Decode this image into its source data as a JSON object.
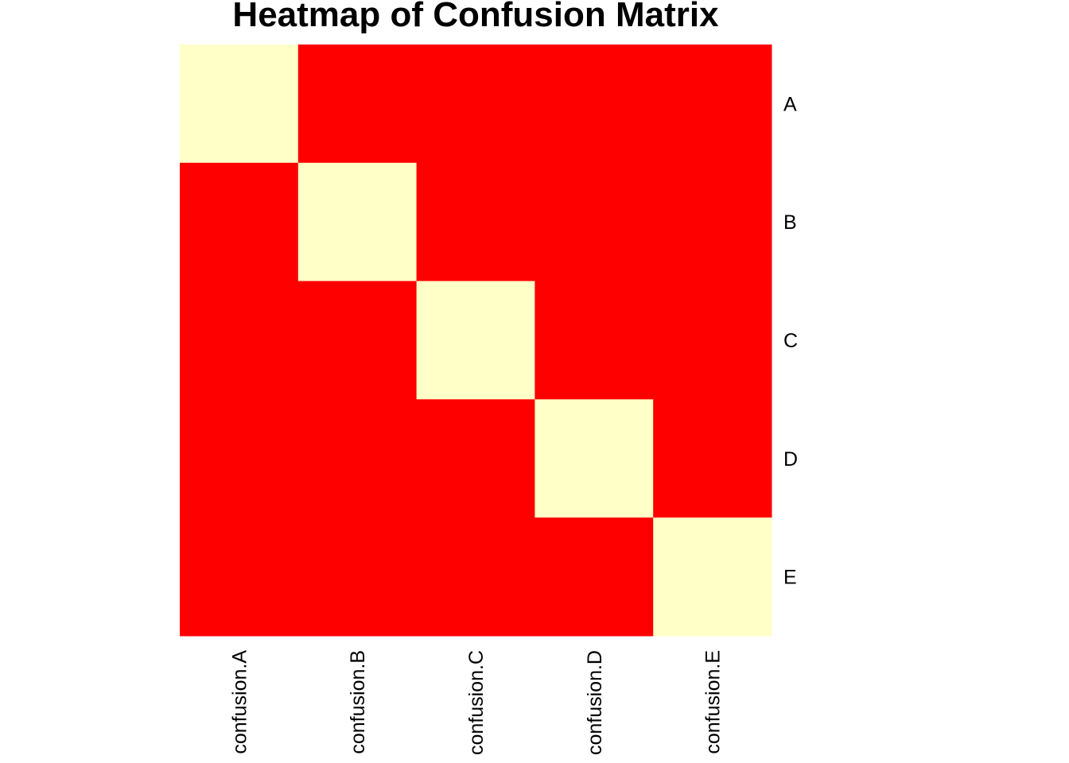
{
  "chart_data": {
    "type": "heatmap",
    "title": "Heatmap of Confusion Matrix",
    "columns": [
      "confusion.A",
      "confusion.B",
      "confusion.C",
      "confusion.D",
      "confusion.E"
    ],
    "rows": [
      "A",
      "B",
      "C",
      "D",
      "E"
    ],
    "values": [
      [
        1,
        0,
        0,
        0,
        0
      ],
      [
        0,
        1,
        0,
        0,
        0
      ],
      [
        0,
        0,
        1,
        0,
        0
      ],
      [
        0,
        0,
        0,
        1,
        0
      ],
      [
        0,
        0,
        0,
        0,
        1
      ]
    ],
    "colors": {
      "low": "#fe0000",
      "high": "#ffffc8"
    }
  }
}
